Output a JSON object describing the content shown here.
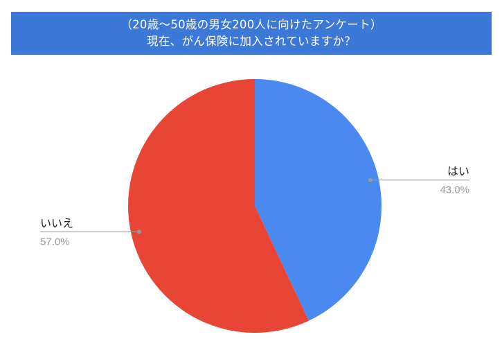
{
  "header": {
    "line1": "（20歳～50歳の男女200人に向けたアンケート）",
    "line2": "現在、がん保険に加入されていますか？"
  },
  "colors": {
    "banner": "#3c78d8",
    "yes": "#4a89f0",
    "no": "#e84537",
    "leader": "#999999",
    "label": "#222222",
    "percent": "#999999"
  },
  "chart_data": {
    "type": "pie",
    "title": "（20歳～50歳の男女200人に向けたアンケート）現在、がん保険に加入されていますか？",
    "legend": "none",
    "slices": [
      {
        "label": "はい",
        "value": 43.0,
        "display": "43.0%",
        "color": "#4a89f0"
      },
      {
        "label": "いいえ",
        "value": 57.0,
        "display": "57.0%",
        "color": "#e84537"
      }
    ]
  }
}
